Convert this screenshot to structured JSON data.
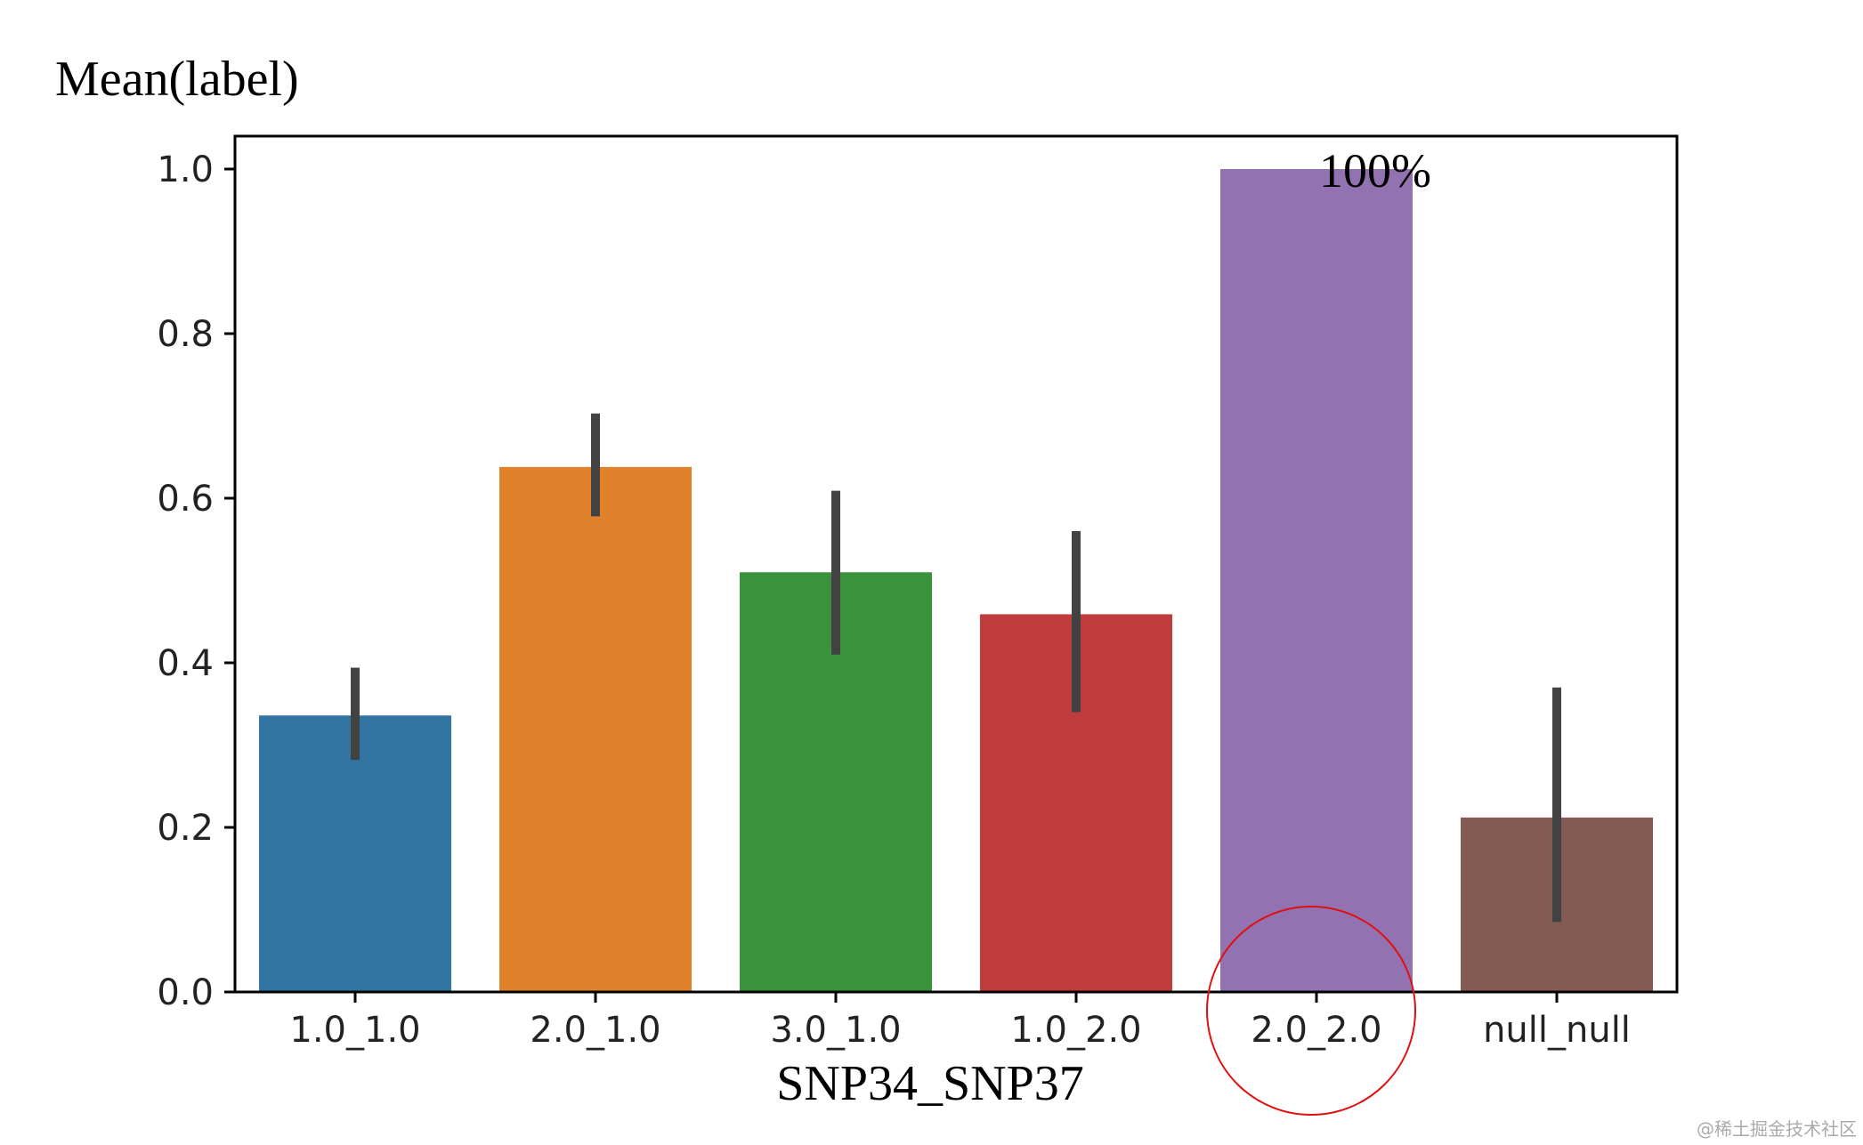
{
  "chart_data": {
    "type": "bar",
    "ylabel": "Mean(label)",
    "xlabel": "SNP34_SNP37",
    "categories": [
      "1.0_1.0",
      "2.0_1.0",
      "3.0_1.0",
      "1.0_2.0",
      "2.0_2.0",
      "null_null"
    ],
    "values": [
      0.336,
      0.638,
      0.51,
      0.459,
      1.0,
      0.212
    ],
    "error_low": [
      0.282,
      0.578,
      0.41,
      0.34,
      1.0,
      0.085
    ],
    "error_high": [
      0.394,
      0.703,
      0.609,
      0.56,
      1.0,
      0.37
    ],
    "colors": [
      "#3274a1",
      "#e1812c",
      "#3a923a",
      "#c03d3e",
      "#9372b2",
      "#845b53"
    ],
    "error_color": "#424242",
    "ylim": [
      0,
      1.04
    ],
    "yticks": [
      "0.0",
      "0.2",
      "0.4",
      "0.6",
      "0.8",
      "1.0"
    ],
    "ytick_values": [
      0,
      0.2,
      0.4,
      0.6,
      0.8,
      1.0
    ],
    "annotations": [
      {
        "text": "100%",
        "category_index": 4,
        "y": 1.0
      }
    ],
    "highlight": {
      "shape": "circle",
      "category_index": 4,
      "color": "#e01010"
    }
  },
  "watermark": "@稀土掘金技术社区"
}
